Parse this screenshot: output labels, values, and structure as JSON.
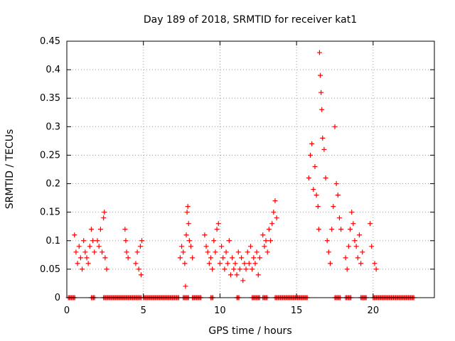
{
  "chart_data": {
    "type": "scatter",
    "title": "Day 189 of 2018, SRMTID for receiver kat1",
    "xlabel": "GPS time / hours",
    "ylabel": "SRMTID / TECUs",
    "xlim": [
      0,
      24
    ],
    "ylim": [
      0,
      0.45
    ],
    "x_ticks": [
      0,
      5,
      10,
      15,
      20
    ],
    "x_tick_labels": [
      "0",
      "5",
      "10",
      "15",
      "20"
    ],
    "y_ticks": [
      0,
      0.05,
      0.1,
      0.15,
      0.2,
      0.25,
      0.3,
      0.35,
      0.4,
      0.45
    ],
    "y_tick_labels": [
      "0",
      "0.05",
      "0.1",
      "0.15",
      "0.2",
      "0.25",
      "0.3",
      "0.35",
      "0.4",
      "0.45"
    ],
    "grid": true,
    "marker": "plus",
    "series_color": "#ff0000",
    "series": [
      {
        "name": "SRMTID",
        "points": [
          [
            0.5,
            0.11
          ],
          [
            0.6,
            0.08
          ],
          [
            0.7,
            0.06
          ],
          [
            0.8,
            0.09
          ],
          [
            0.9,
            0.07
          ],
          [
            1.0,
            0.05
          ],
          [
            1.1,
            0.1
          ],
          [
            1.2,
            0.08
          ],
          [
            1.3,
            0.07
          ],
          [
            1.4,
            0.06
          ],
          [
            1.5,
            0.09
          ],
          [
            1.6,
            0.12
          ],
          [
            1.7,
            0.1
          ],
          [
            1.8,
            0.08
          ],
          [
            2.0,
            0.1
          ],
          [
            2.1,
            0.09
          ],
          [
            2.2,
            0.12
          ],
          [
            2.3,
            0.08
          ],
          [
            2.4,
            0.14
          ],
          [
            2.45,
            0.15
          ],
          [
            2.5,
            0.07
          ],
          [
            2.6,
            0.05
          ],
          [
            3.8,
            0.12
          ],
          [
            3.85,
            0.1
          ],
          [
            3.9,
            0.08
          ],
          [
            4.0,
            0.07
          ],
          [
            4.5,
            0.06
          ],
          [
            4.6,
            0.08
          ],
          [
            4.7,
            0.05
          ],
          [
            4.8,
            0.09
          ],
          [
            4.85,
            0.04
          ],
          [
            4.9,
            0.1
          ],
          [
            7.4,
            0.07
          ],
          [
            7.5,
            0.09
          ],
          [
            7.6,
            0.08
          ],
          [
            7.7,
            0.06
          ],
          [
            7.75,
            0.02
          ],
          [
            7.8,
            0.11
          ],
          [
            7.85,
            0.15
          ],
          [
            7.9,
            0.16
          ],
          [
            7.95,
            0.13
          ],
          [
            8.0,
            0.1
          ],
          [
            8.1,
            0.09
          ],
          [
            8.2,
            0.07
          ],
          [
            9.0,
            0.11
          ],
          [
            9.1,
            0.09
          ],
          [
            9.2,
            0.08
          ],
          [
            9.3,
            0.06
          ],
          [
            9.4,
            0.07
          ],
          [
            9.5,
            0.05
          ],
          [
            9.6,
            0.1
          ],
          [
            9.7,
            0.08
          ],
          [
            9.8,
            0.12
          ],
          [
            9.9,
            0.13
          ],
          [
            10.0,
            0.06
          ],
          [
            10.1,
            0.09
          ],
          [
            10.2,
            0.07
          ],
          [
            10.3,
            0.05
          ],
          [
            10.4,
            0.08
          ],
          [
            10.5,
            0.06
          ],
          [
            10.6,
            0.1
          ],
          [
            10.7,
            0.04
          ],
          [
            10.8,
            0.07
          ],
          [
            10.9,
            0.05
          ],
          [
            11.0,
            0.06
          ],
          [
            11.1,
            0.04
          ],
          [
            11.2,
            0.08
          ],
          [
            11.3,
            0.05
          ],
          [
            11.4,
            0.07
          ],
          [
            11.5,
            0.03
          ],
          [
            11.6,
            0.06
          ],
          [
            11.7,
            0.05
          ],
          [
            11.8,
            0.08
          ],
          [
            11.9,
            0.06
          ],
          [
            12.0,
            0.09
          ],
          [
            12.1,
            0.05
          ],
          [
            12.2,
            0.07
          ],
          [
            12.3,
            0.06
          ],
          [
            12.4,
            0.08
          ],
          [
            12.5,
            0.04
          ],
          [
            12.6,
            0.07
          ],
          [
            12.8,
            0.11
          ],
          [
            12.9,
            0.09
          ],
          [
            13.0,
            0.1
          ],
          [
            13.1,
            0.08
          ],
          [
            13.2,
            0.12
          ],
          [
            13.3,
            0.1
          ],
          [
            13.4,
            0.13
          ],
          [
            13.5,
            0.15
          ],
          [
            13.6,
            0.17
          ],
          [
            13.7,
            0.14
          ],
          [
            15.8,
            0.21
          ],
          [
            15.9,
            0.25
          ],
          [
            16.0,
            0.27
          ],
          [
            16.1,
            0.19
          ],
          [
            16.2,
            0.23
          ],
          [
            16.3,
            0.18
          ],
          [
            16.4,
            0.16
          ],
          [
            16.45,
            0.12
          ],
          [
            16.5,
            0.43
          ],
          [
            16.55,
            0.39
          ],
          [
            16.6,
            0.36
          ],
          [
            16.65,
            0.33
          ],
          [
            16.7,
            0.28
          ],
          [
            16.8,
            0.26
          ],
          [
            16.9,
            0.21
          ],
          [
            17.0,
            0.1
          ],
          [
            17.1,
            0.08
          ],
          [
            17.2,
            0.06
          ],
          [
            17.3,
            0.12
          ],
          [
            17.4,
            0.16
          ],
          [
            17.5,
            0.3
          ],
          [
            17.6,
            0.2
          ],
          [
            17.7,
            0.18
          ],
          [
            17.8,
            0.14
          ],
          [
            17.9,
            0.12
          ],
          [
            18.2,
            0.07
          ],
          [
            18.3,
            0.05
          ],
          [
            18.4,
            0.09
          ],
          [
            18.5,
            0.12
          ],
          [
            18.6,
            0.15
          ],
          [
            18.7,
            0.13
          ],
          [
            18.8,
            0.1
          ],
          [
            18.9,
            0.09
          ],
          [
            19.0,
            0.07
          ],
          [
            19.1,
            0.11
          ],
          [
            19.2,
            0.06
          ],
          [
            19.3,
            0.08
          ],
          [
            19.8,
            0.13
          ],
          [
            19.9,
            0.09
          ],
          [
            20.1,
            0.06
          ],
          [
            20.2,
            0.05
          ]
        ]
      }
    ],
    "zero_value_segments": [
      [
        0.1,
        0.55
      ],
      [
        1.6,
        1.85
      ],
      [
        2.4,
        4.9
      ],
      [
        5.0,
        7.35
      ],
      [
        7.6,
        7.95
      ],
      [
        8.2,
        8.8
      ],
      [
        9.4,
        9.6
      ],
      [
        11.1,
        11.3
      ],
      [
        12.1,
        12.6
      ],
      [
        12.8,
        13.1
      ],
      [
        13.6,
        15.7
      ],
      [
        17.5,
        17.9
      ],
      [
        18.2,
        18.6
      ],
      [
        19.2,
        19.6
      ],
      [
        20.0,
        22.7
      ]
    ]
  }
}
